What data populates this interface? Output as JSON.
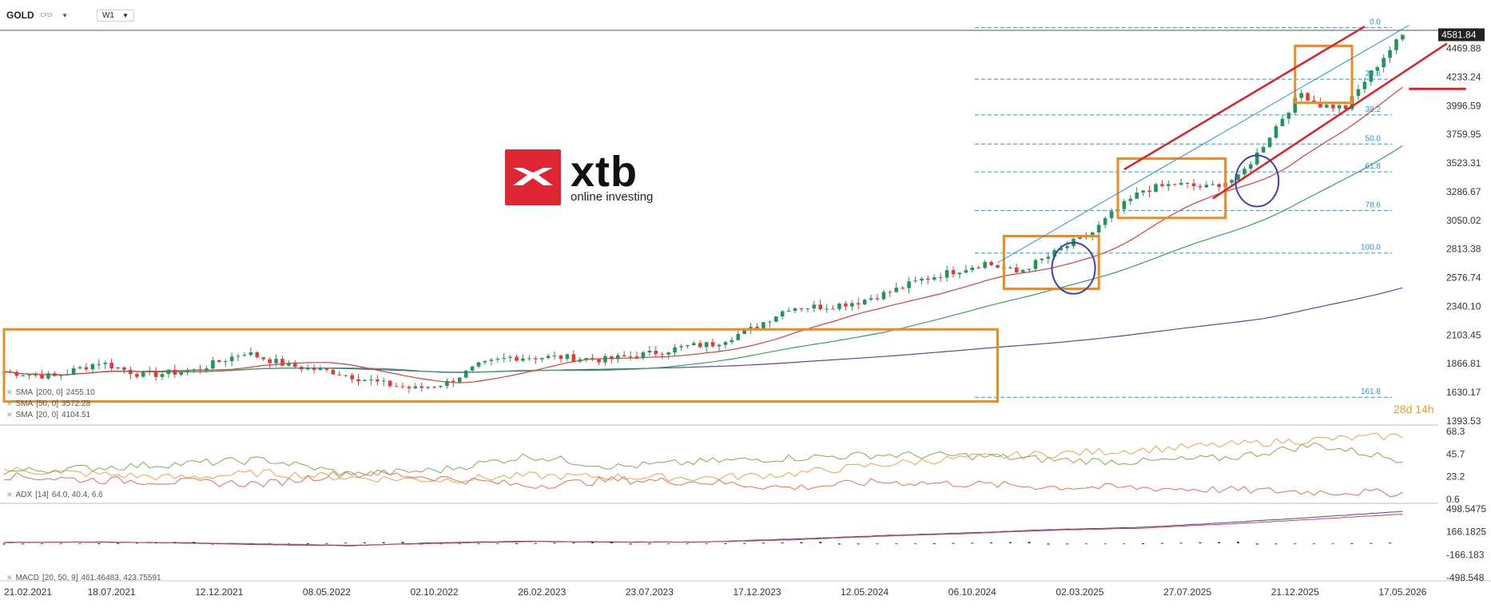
{
  "header": {
    "symbol": "GOLD",
    "instrument_type": "CFD",
    "timeframe": "W1"
  },
  "logo": {
    "brand": "xtb",
    "tagline": "online investing"
  },
  "countdown": {
    "days": "28",
    "days_unit": "d",
    "hours": "14",
    "hours_unit": "h"
  },
  "chart_data": [
    {
      "type": "candlestick",
      "title": "GOLD CFD W1",
      "ylim": [
        1393.53,
        4750
      ],
      "price_axis_ticks": [
        "4469.88",
        "4233.24",
        "3996.59",
        "3759.95",
        "3523.31",
        "3286.67",
        "3050.02",
        "2813.38",
        "2576.74",
        "2340.10",
        "2103.45",
        "1866.81",
        "1630.17",
        "1393.53"
      ],
      "last_price": "4581.84",
      "date_ticks": [
        "21.02.2021",
        "18.07.2021",
        "12.12.2021",
        "08.05.2022",
        "02.10.2022",
        "26.02.2023",
        "23.07.2023",
        "17.12.2023",
        "12.05.2024",
        "06.10.2024",
        "02.03.2025",
        "27.07.2025",
        "21.12.2025",
        "17.05.2026"
      ],
      "close_path": [
        [
          0,
          1800
        ],
        [
          8,
          1760
        ],
        [
          15,
          1880
        ],
        [
          22,
          1770
        ],
        [
          30,
          1810
        ],
        [
          38,
          1960
        ],
        [
          45,
          1850
        ],
        [
          52,
          1800
        ],
        [
          60,
          1700
        ],
        [
          65,
          1660
        ],
        [
          70,
          1710
        ],
        [
          75,
          1850
        ],
        [
          80,
          1920
        ],
        [
          88,
          1920
        ],
        [
          95,
          1900
        ],
        [
          102,
          1950
        ],
        [
          108,
          2010
        ],
        [
          112,
          2030
        ],
        [
          118,
          2150
        ],
        [
          124,
          2330
        ],
        [
          130,
          2340
        ],
        [
          135,
          2380
        ],
        [
          140,
          2460
        ],
        [
          145,
          2560
        ],
        [
          150,
          2630
        ],
        [
          155,
          2700
        ],
        [
          160,
          2620
        ],
        [
          165,
          2750
        ],
        [
          170,
          2900
        ],
        [
          172,
          2950
        ],
        [
          175,
          3100
        ],
        [
          180,
          3300
        ],
        [
          185,
          3350
        ],
        [
          190,
          3320
        ],
        [
          195,
          3400
        ],
        [
          198,
          3600
        ],
        [
          200,
          3750
        ],
        [
          202,
          3900
        ],
        [
          205,
          4100
        ],
        [
          208,
          4000
        ],
        [
          212,
          3980
        ],
        [
          215,
          4200
        ],
        [
          218,
          4400
        ],
        [
          221,
          4580
        ]
      ],
      "fibonacci": [
        {
          "label": "0.0",
          "price": 4640
        },
        {
          "label": "23.6",
          "price": 4215
        },
        {
          "label": "38.2",
          "price": 3920
        },
        {
          "label": "50.0",
          "price": 3680
        },
        {
          "label": "61.8",
          "price": 3450
        },
        {
          "label": "78.6",
          "price": 3130
        },
        {
          "label": "100.0",
          "price": 2780
        },
        {
          "label": "161.8",
          "price": 1590
        }
      ],
      "overlays": [
        {
          "name": "SMA",
          "params": "[200, 0]",
          "value": "2455.10",
          "color": "#4b4fa0"
        },
        {
          "name": "SMA",
          "params": "[50, 0]",
          "value": "3572.28",
          "color": "#3aa05c"
        },
        {
          "name": "SMA",
          "params": "[20, 0]",
          "value": "4104.51",
          "color": "#e53935"
        }
      ],
      "annotations": [
        "orange consolidation boxes",
        "red upward channel lines",
        "blue trendline",
        "blue circles",
        "red horizontal marker"
      ]
    },
    {
      "type": "line",
      "title": "ADX",
      "params": "[14]",
      "values_text": "64.0, 40.4, 6.6",
      "ylim": [
        0.6,
        68.3
      ],
      "ticks": [
        "68.3",
        "45.7",
        "23.2",
        "0.6"
      ],
      "series": [
        {
          "name": "ADX",
          "color": "#f4a04a",
          "values": [
            30,
            26,
            22,
            27,
            22,
            20,
            24,
            23,
            22,
            26,
            35,
            42,
            46,
            50,
            55,
            60,
            64
          ]
        },
        {
          "name": "+DI",
          "color": "#7fae4e",
          "values": [
            28,
            32,
            36,
            40,
            25,
            30,
            44,
            33,
            38,
            42,
            45,
            44,
            40,
            38,
            42,
            55,
            40
          ]
        },
        {
          "name": "-DI",
          "color": "#ec6c5a",
          "values": [
            24,
            20,
            18,
            16,
            28,
            22,
            14,
            20,
            18,
            12,
            18,
            16,
            13,
            12,
            10,
            8,
            7
          ]
        }
      ]
    },
    {
      "type": "line",
      "title": "MACD",
      "params": "[20, 50, 9]",
      "values_text": "461.46483,  423.75591",
      "ylim": [
        -498.548,
        498.5475
      ],
      "ticks": [
        "498.5475",
        "166.1825",
        "-166.183",
        "-498.548"
      ],
      "series": [
        {
          "name": "MACD",
          "color": "#3949ab",
          "values": [
            10,
            20,
            5,
            -20,
            -35,
            10,
            30,
            15,
            20,
            60,
            110,
            150,
            200,
            230,
            300,
            380,
            461
          ]
        },
        {
          "name": "Signal",
          "color": "#e53935",
          "values": [
            15,
            15,
            10,
            -10,
            -30,
            0,
            25,
            20,
            18,
            50,
            100,
            140,
            190,
            220,
            280,
            350,
            424
          ]
        }
      ]
    }
  ]
}
